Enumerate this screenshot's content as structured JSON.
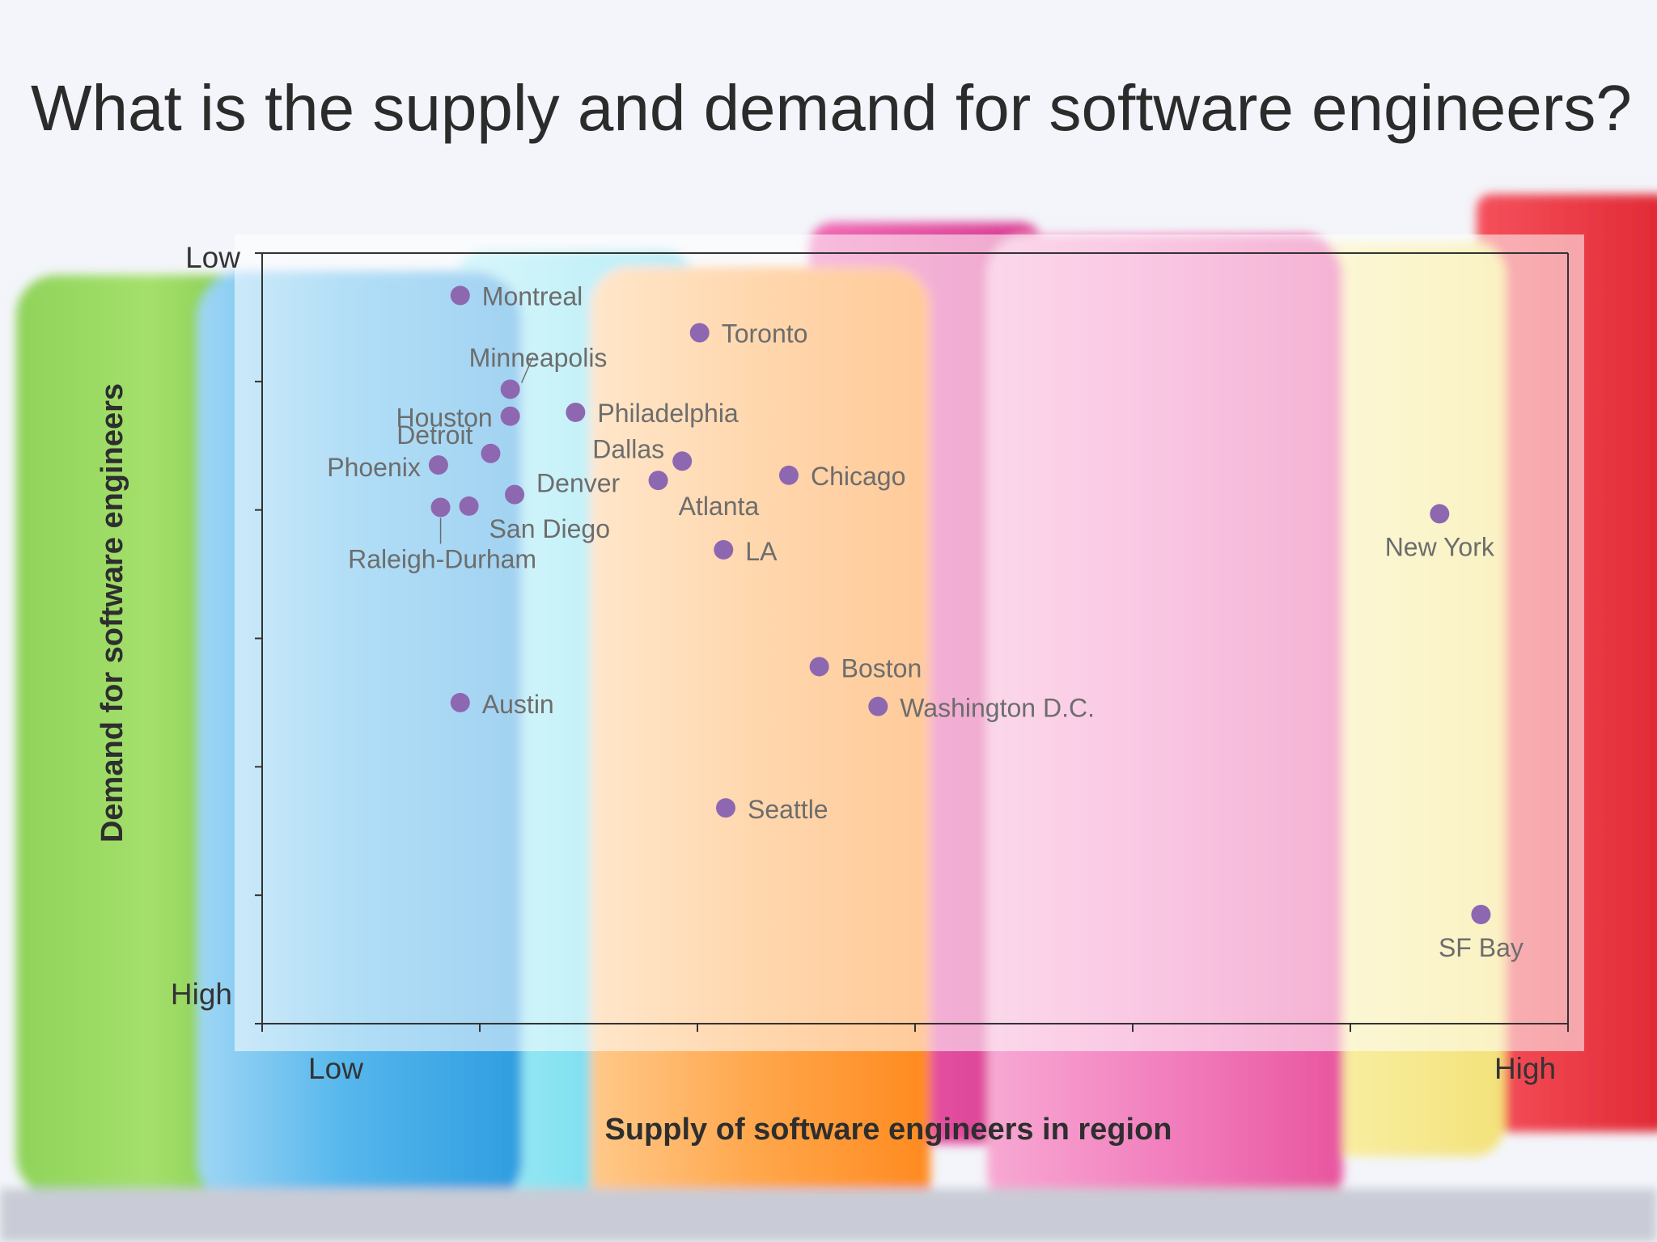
{
  "title": "What is the supply and demand for software engineers?",
  "colors": {
    "point": "#8e67b1",
    "label": "#6d6d6d",
    "axis": "#333333",
    "plot_overlay": "rgba(255,255,255,0.55)"
  },
  "chart_data": {
    "type": "scatter",
    "xlabel": "Supply of software engineers in  region",
    "ylabel": "Demand for  software engineers",
    "x_tick_labels": {
      "start": "Low",
      "end": "High"
    },
    "y_tick_labels": {
      "start": "Low",
      "end": "High"
    },
    "xlim": [
      0,
      6
    ],
    "ylim": [
      0,
      6
    ],
    "y_inverted": true,
    "grid": false,
    "legend": "none",
    "points": [
      {
        "label": "Montreal",
        "x": 0.91,
        "y": 0.33
      },
      {
        "label": "Toronto",
        "x": 2.01,
        "y": 0.62
      },
      {
        "label": "Minneapolis",
        "x": 1.14,
        "y": 1.06
      },
      {
        "label": "Houston",
        "x": 1.14,
        "y": 1.27
      },
      {
        "label": "Philadelphia",
        "x": 1.44,
        "y": 1.24
      },
      {
        "label": "Detroit",
        "x": 1.05,
        "y": 1.56
      },
      {
        "label": "Phoenix",
        "x": 0.81,
        "y": 1.65
      },
      {
        "label": "Dallas",
        "x": 1.93,
        "y": 1.62
      },
      {
        "label": "Atlanta",
        "x": 1.82,
        "y": 1.77
      },
      {
        "label": "Chicago",
        "x": 2.42,
        "y": 1.73
      },
      {
        "label": "Denver",
        "x": 1.16,
        "y": 1.88
      },
      {
        "label": "San Diego",
        "x": 0.95,
        "y": 1.97
      },
      {
        "label": "Raleigh-Durham",
        "x": 0.82,
        "y": 1.98
      },
      {
        "label": "LA",
        "x": 2.12,
        "y": 2.31
      },
      {
        "label": "New York",
        "x": 5.41,
        "y": 2.03
      },
      {
        "label": "Boston",
        "x": 2.56,
        "y": 3.22
      },
      {
        "label": "Austin",
        "x": 0.91,
        "y": 3.5
      },
      {
        "label": "Washington D.C.",
        "x": 2.83,
        "y": 3.53
      },
      {
        "label": "Seattle",
        "x": 2.13,
        "y": 4.32
      },
      {
        "label": "SF Bay",
        "x": 5.6,
        "y": 5.15
      }
    ]
  }
}
